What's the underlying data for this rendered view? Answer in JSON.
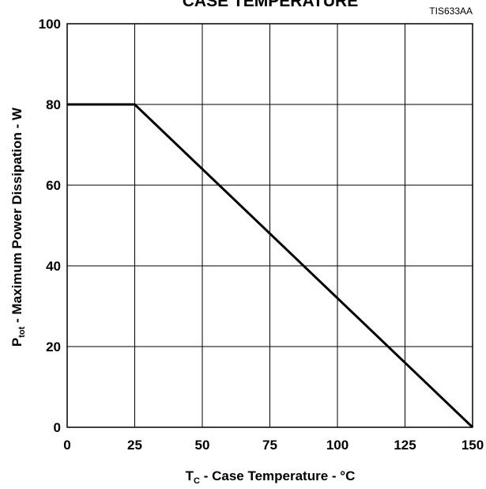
{
  "chart_data": {
    "type": "line",
    "title": "CASE TEMPERATURE",
    "figure_code": "TIS633AA",
    "xlabel": {
      "main": "T",
      "subscript": "C",
      "rest": " - Case Temperature - °C"
    },
    "ylabel": {
      "main": "P",
      "subscript": "tot",
      "rest": " - Maximum Power Dissipation - W"
    },
    "xlim": [
      0,
      150
    ],
    "ylim": [
      0,
      100
    ],
    "xticks": [
      0,
      25,
      50,
      75,
      100,
      125,
      150
    ],
    "yticks": [
      0,
      20,
      40,
      60,
      80,
      100
    ],
    "grid": true,
    "series": [
      {
        "x": [
          0,
          25,
          150
        ],
        "y": [
          80,
          80,
          0
        ]
      }
    ]
  },
  "colors": {
    "line": "#000000",
    "grid": "#000000",
    "background": "#ffffff"
  }
}
